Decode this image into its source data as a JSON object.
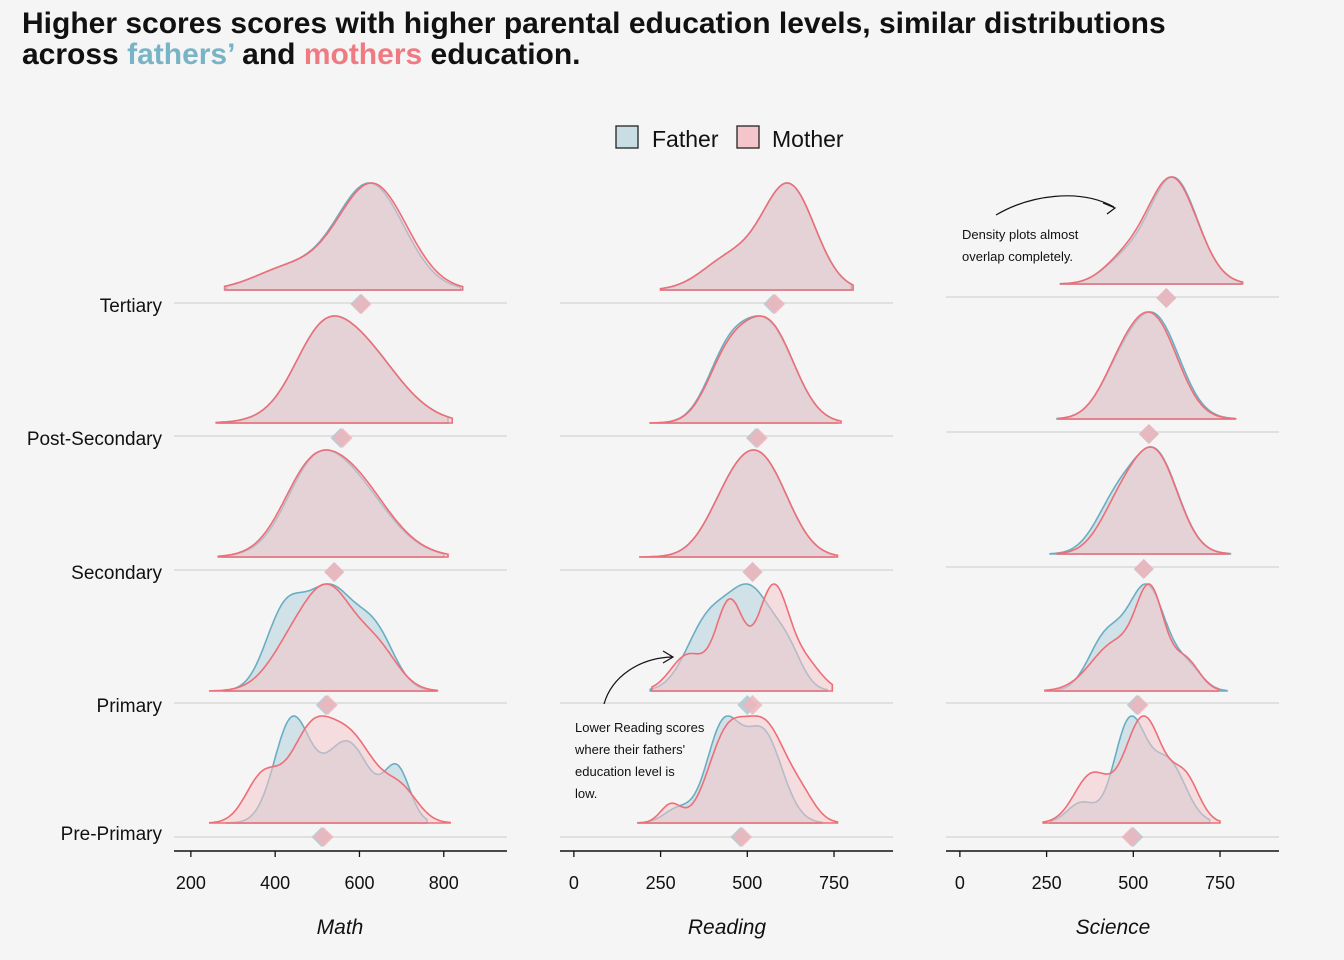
{
  "title": {
    "line1": "Higher scores scores with higher parental education levels, similar distributions",
    "across": "across ",
    "fathers": "fathers’",
    "and": " and ",
    "mothers": "mothers",
    "end": " education."
  },
  "colors": {
    "father_line": "#6aaec3",
    "father_fill": "#c9dde4",
    "mother_line": "#ee6e77",
    "mother_fill": "#f4c6cb",
    "overlap_fill": "#d8bcc3",
    "background": "#f5f5f5"
  },
  "chart_data": {
    "type": "ridgeline-density",
    "legend": {
      "position": "top-center",
      "entries": [
        "Father",
        "Mother"
      ]
    },
    "levels": [
      "Pre-Primary",
      "Primary",
      "Secondary",
      "Post-Secondary",
      "Tertiary"
    ],
    "panels": [
      {
        "name": "Math",
        "xlim": [
          160,
          950
        ],
        "ticks": [
          200,
          400,
          600,
          800
        ],
        "series": {
          "Father": {
            "Pre-Primary": {
              "mean": 510,
              "range": [
                285,
                760
              ],
              "peaks": [
                [
                  440,
                  1.0,
                  42
                ],
                [
                  570,
                  0.8,
                  55
                ],
                [
                  690,
                  0.5,
                  30
                ]
              ]
            },
            "Primary": {
              "mean": 520,
              "range": [
                280,
                780
              ],
              "peaks": [
                [
                  420,
                  0.7,
                  45
                ],
                [
                  530,
                  1.0,
                  60
                ],
                [
                  640,
                  0.5,
                  45
                ]
              ]
            },
            "Secondary": {
              "mean": 540,
              "range": [
                275,
                800
              ],
              "peaks": [
                [
                  480,
                  0.45,
                  60
                ],
                [
                  560,
                  1.0,
                  95
                ]
              ]
            },
            "Post-Secondary": {
              "mean": 555,
              "range": [
                265,
                810
              ],
              "peaks": [
                [
                  500,
                  0.4,
                  60
                ],
                [
                  580,
                  1.0,
                  100
                ]
              ]
            },
            "Tertiary": {
              "mean": 602,
              "range": [
                285,
                840
              ],
              "peaks": [
                [
                  430,
                  0.2,
                  80
                ],
                [
                  625,
                  1.0,
                  80
                ]
              ]
            }
          },
          "Mother": {
            "Pre-Primary": {
              "mean": 515,
              "range": [
                245,
                815
              ],
              "peaks": [
                [
                  370,
                  0.55,
                  40
                ],
                [
                  480,
                  0.95,
                  50
                ],
                [
                  580,
                  1.0,
                  60
                ],
                [
                  700,
                  0.35,
                  40
                ]
              ]
            },
            "Primary": {
              "mean": 525,
              "range": [
                245,
                785
              ],
              "peaks": [
                [
                  450,
                  0.6,
                  60
                ],
                [
                  535,
                  1.0,
                  55
                ],
                [
                  640,
                  0.5,
                  50
                ]
              ]
            },
            "Secondary": {
              "mean": 540,
              "range": [
                265,
                810
              ],
              "peaks": [
                [
                  470,
                  0.4,
                  60
                ],
                [
                  560,
                  1.0,
                  95
                ]
              ]
            },
            "Post-Secondary": {
              "mean": 560,
              "range": [
                260,
                820
              ],
              "peaks": [
                [
                  500,
                  0.4,
                  60
                ],
                [
                  580,
                  1.0,
                  100
                ]
              ]
            },
            "Tertiary": {
              "mean": 605,
              "range": [
                280,
                845
              ],
              "peaks": [
                [
                  430,
                  0.2,
                  80
                ],
                [
                  630,
                  1.0,
                  82
                ]
              ]
            }
          }
        }
      },
      {
        "name": "Reading",
        "xlim": [
          -40,
          920
        ],
        "ticks": [
          0,
          250,
          500,
          750
        ],
        "series": {
          "Father": {
            "Pre-Primary": {
              "mean": 480,
              "range": [
                185,
                715
              ],
              "peaks": [
                [
                  430,
                  1.0,
                  48
                ],
                [
                  545,
                  0.95,
                  55
                ],
                [
                  300,
                  0.15,
                  40
                ]
              ]
            },
            "Primary": {
              "mean": 500,
              "range": [
                220,
                730
              ],
              "peaks": [
                [
                  380,
                  0.6,
                  60
                ],
                [
                  510,
                  1.0,
                  70
                ],
                [
                  620,
                  0.25,
                  40
                ]
              ]
            },
            "Secondary": {
              "mean": 515,
              "range": [
                195,
                750
              ],
              "peaks": [
                [
                  450,
                  0.6,
                  70
                ],
                [
                  550,
                  1.0,
                  75
                ]
              ]
            },
            "Post-Secondary": {
              "mean": 525,
              "range": [
                220,
                760
              ],
              "peaks": [
                [
                  440,
                  0.6,
                  60
                ],
                [
                  560,
                  1.0,
                  75
                ]
              ]
            },
            "Tertiary": {
              "mean": 575,
              "range": [
                250,
                800
              ],
              "peaks": [
                [
                  450,
                  0.3,
                  80
                ],
                [
                  620,
                  1.0,
                  75
                ]
              ]
            }
          },
          "Mother": {
            "Pre-Primary": {
              "mean": 485,
              "range": [
                185,
                760
              ],
              "peaks": [
                [
                  280,
                  0.2,
                  30
                ],
                [
                  440,
                  0.9,
                  55
                ],
                [
                  555,
                  1.0,
                  60
                ],
                [
                  660,
                  0.2,
                  40
                ]
              ]
            },
            "Primary": {
              "mean": 515,
              "range": [
                225,
                745
              ],
              "peaks": [
                [
                  330,
                  0.35,
                  50
                ],
                [
                  450,
                  0.85,
                  40
                ],
                [
                  575,
                  1.0,
                  45
                ],
                [
                  670,
                  0.25,
                  45
                ]
              ]
            },
            "Secondary": {
              "mean": 515,
              "range": [
                190,
                760
              ],
              "peaks": [
                [
                  450,
                  0.6,
                  70
                ],
                [
                  550,
                  1.0,
                  75
                ]
              ]
            },
            "Post-Secondary": {
              "mean": 530,
              "range": [
                220,
                770
              ],
              "peaks": [
                [
                  440,
                  0.55,
                  60
                ],
                [
                  560,
                  1.0,
                  75
                ]
              ]
            },
            "Tertiary": {
              "mean": 580,
              "range": [
                250,
                805
              ],
              "peaks": [
                [
                  450,
                  0.3,
                  80
                ],
                [
                  620,
                  1.0,
                  75
                ]
              ]
            }
          }
        }
      },
      {
        "name": "Science",
        "xlim": [
          -40,
          920
        ],
        "ticks": [
          0,
          250,
          500,
          750
        ],
        "series": {
          "Father": {
            "Pre-Primary": {
              "mean": 500,
              "range": [
                260,
                720
              ],
              "peaks": [
                [
                  490,
                  1.0,
                  45
                ],
                [
                  600,
                  0.6,
                  50
                ],
                [
                  350,
                  0.2,
                  40
                ]
              ]
            },
            "Primary": {
              "mean": 510,
              "range": [
                275,
                770
              ],
              "peaks": [
                [
                  420,
                  0.5,
                  50
                ],
                [
                  540,
                  1.0,
                  55
                ],
                [
                  660,
                  0.2,
                  40
                ]
              ]
            },
            "Secondary": {
              "mean": 530,
              "range": [
                260,
                780
              ],
              "peaks": [
                [
                  450,
                  0.5,
                  60
                ],
                [
                  565,
                  1.0,
                  65
                ]
              ]
            },
            "Post-Secondary": {
              "mean": 545,
              "range": [
                280,
                790
              ],
              "peaks": [
                [
                  460,
                  0.4,
                  60
                ],
                [
                  565,
                  1.0,
                  70
                ]
              ]
            },
            "Tertiary": {
              "mean": 595,
              "range": [
                290,
                810
              ],
              "peaks": [
                [
                  470,
                  0.2,
                  60
                ],
                [
                  615,
                  1.0,
                  70
                ]
              ]
            }
          },
          "Mother": {
            "Pre-Primary": {
              "mean": 495,
              "range": [
                240,
                750
              ],
              "peaks": [
                [
                  380,
                  0.45,
                  50
                ],
                [
                  530,
                  1.0,
                  55
                ],
                [
                  650,
                  0.4,
                  40
                ]
              ]
            },
            "Primary": {
              "mean": 515,
              "range": [
                245,
                745
              ],
              "peaks": [
                [
                  450,
                  0.55,
                  70
                ],
                [
                  550,
                  1.0,
                  40
                ],
                [
                  650,
                  0.35,
                  40
                ]
              ]
            },
            "Secondary": {
              "mean": 530,
              "range": [
                280,
                775
              ],
              "peaks": [
                [
                  460,
                  0.45,
                  60
                ],
                [
                  565,
                  1.0,
                  65
                ]
              ]
            },
            "Post-Secondary": {
              "mean": 545,
              "range": [
                285,
                795
              ],
              "peaks": [
                [
                  460,
                  0.4,
                  60
                ],
                [
                  560,
                  1.0,
                  70
                ]
              ]
            },
            "Tertiary": {
              "mean": 595,
              "range": [
                290,
                815
              ],
              "peaks": [
                [
                  470,
                  0.2,
                  60
                ],
                [
                  612,
                  1.0,
                  72
                ]
              ]
            }
          }
        }
      }
    ],
    "annotations": [
      {
        "panel": "Reading",
        "lines": [
          "Lower Reading scores",
          "where their fathers'",
          "education level is",
          "low."
        ]
      },
      {
        "panel": "Science",
        "lines": [
          "Density plots almost",
          "overlap completely."
        ]
      }
    ]
  }
}
